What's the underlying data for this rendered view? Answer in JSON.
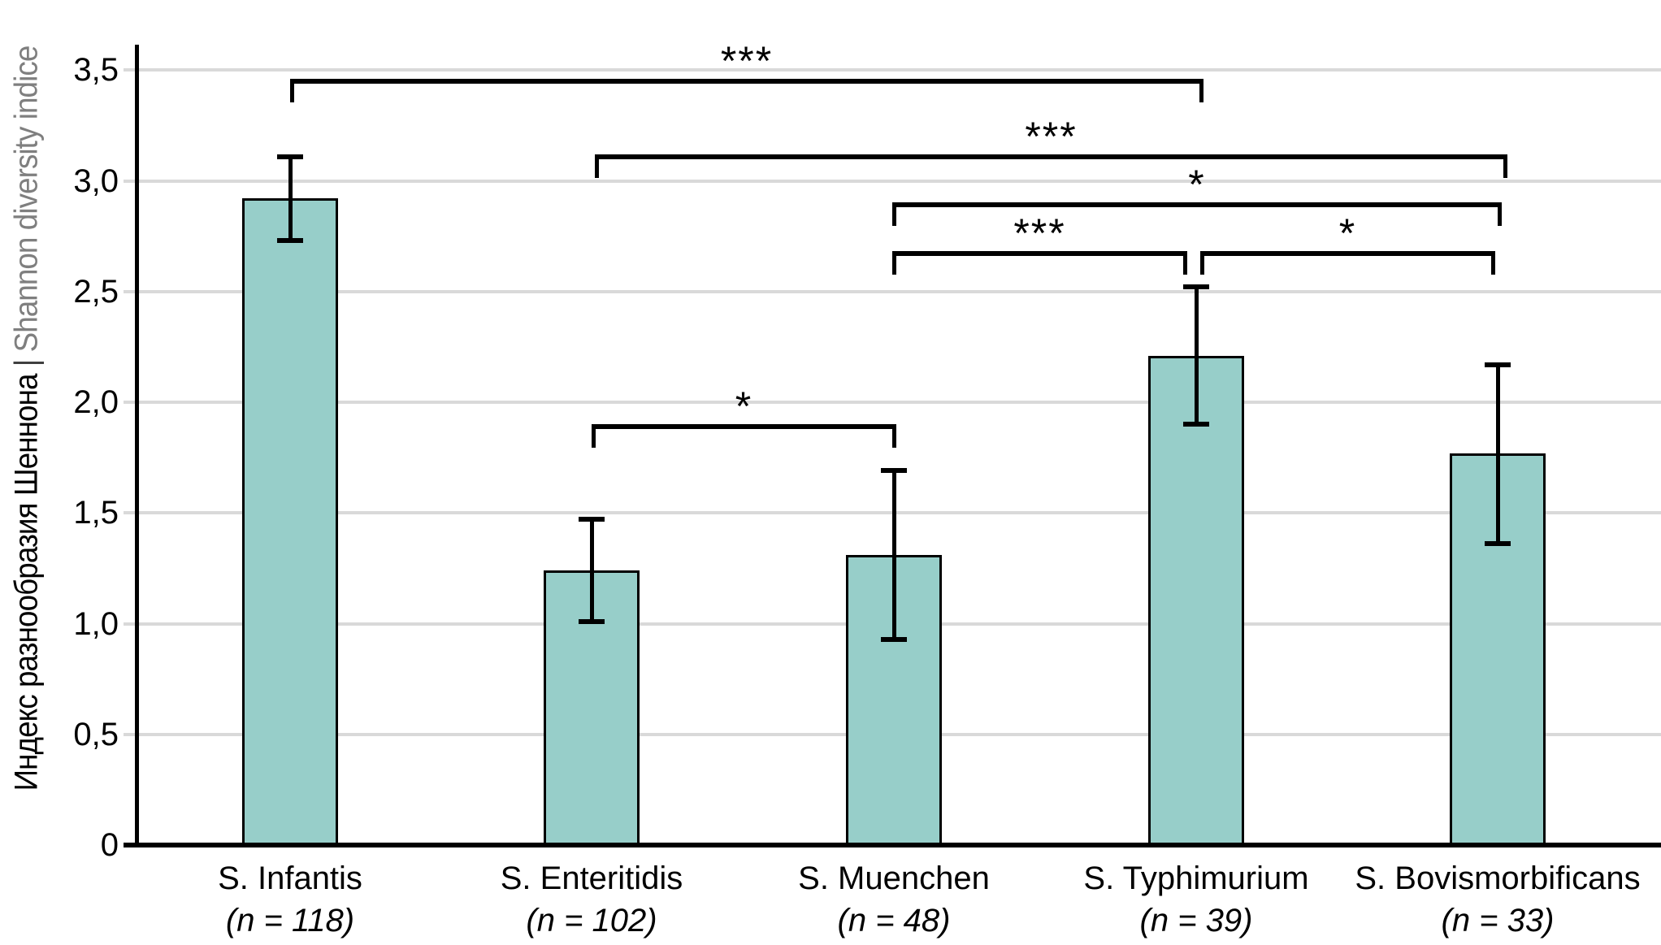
{
  "y_axis_title": {
    "ru": "Индекс разнообразия Шеннона",
    "divider": "|",
    "en": "Shannon diversity indice"
  },
  "chart_data": {
    "type": "bar",
    "ylabel": "Индекс разнообразия Шеннона | Shannon diversity indice",
    "categories": [
      "S. Infantis",
      "S. Enteritidis",
      "S. Muenchen",
      "S. Typhimurium",
      "S. Bovismorbificans"
    ],
    "n_labels": [
      "(n = 118)",
      "(n = 102)",
      "(n = 48)",
      "(n = 39)",
      "(n = 33)"
    ],
    "values": [
      2.92,
      1.24,
      1.31,
      2.21,
      1.77
    ],
    "error_upper": [
      3.11,
      1.47,
      1.69,
      2.52,
      2.17
    ],
    "error_lower": [
      2.73,
      1.01,
      0.93,
      1.9,
      1.36
    ],
    "ylim": [
      0,
      3.5
    ],
    "ytick_step": 0.5,
    "grid": true,
    "legend": "none",
    "y_ticks": [
      {
        "label": "3,5",
        "value": 3.5
      },
      {
        "label": "3,0",
        "value": 3.0
      },
      {
        "label": "2,5",
        "value": 2.5
      },
      {
        "label": "2,0",
        "value": 2.0
      },
      {
        "label": "1,5",
        "value": 1.5
      },
      {
        "label": "1,0",
        "value": 1.0
      },
      {
        "label": "0,5",
        "value": 0.5
      },
      {
        "label": "0",
        "value": 0
      }
    ],
    "bar_color": "#97CEC9",
    "bar_border_color": "#000000",
    "gridline_color": "#D9D9D9",
    "error_color": "#000000",
    "significance": [
      {
        "between": [
          0,
          3
        ],
        "label": "***",
        "height": 3.45
      },
      {
        "between": [
          1,
          4
        ],
        "label": "***",
        "height": 3.11
      },
      {
        "between": [
          2,
          4
        ],
        "label": "*",
        "height": 2.89
      },
      {
        "between": [
          2,
          3
        ],
        "label": "***",
        "height": 2.67
      },
      {
        "between": [
          3,
          4
        ],
        "label": "*",
        "height": 2.67
      },
      {
        "between": [
          1,
          2
        ],
        "label": "*",
        "height": 1.89
      }
    ]
  }
}
